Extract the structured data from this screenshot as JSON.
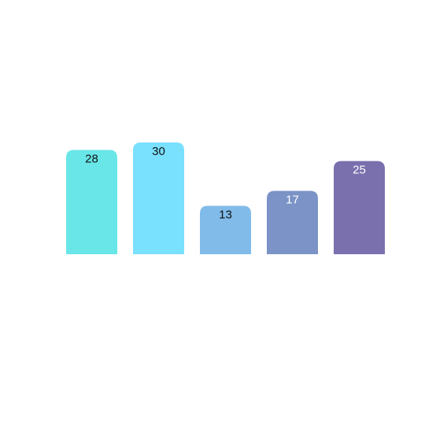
{
  "chart_data": {
    "type": "bar",
    "categories": [
      null,
      null,
      null,
      null,
      null
    ],
    "values": [
      28,
      30,
      13,
      17,
      25
    ],
    "colors": [
      "#69e6e8",
      "#79e0fe",
      "#80bbea",
      "#7b93c6",
      "#7a70ae"
    ],
    "value_label_colors": [
      "#111111",
      "#111111",
      "#111111",
      "#ffffff",
      "#ffffff"
    ]
  }
}
